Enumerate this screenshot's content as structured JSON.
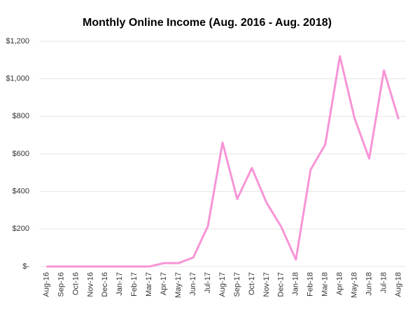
{
  "chart_data": {
    "type": "line",
    "title": "Monthly Online Income (Aug. 2016 - Aug. 2018)",
    "categories": [
      "Aug-16",
      "Sep-16",
      "Oct-16",
      "Nov-16",
      "Dec-16",
      "Jan-17",
      "Feb-17",
      "Mar-17",
      "Apr-17",
      "May-17",
      "Jun-17",
      "Jul-17",
      "Aug-17",
      "Sep-17",
      "Oct-17",
      "Nov-17",
      "Dec-17",
      "Jan-18",
      "Feb-18",
      "Mar-18",
      "Apr-18",
      "May-18",
      "Jun-18",
      "Jul-18",
      "Aug-18"
    ],
    "values": [
      0,
      0,
      0,
      0,
      0,
      0,
      0,
      0,
      18,
      18,
      48,
      215,
      660,
      360,
      525,
      340,
      212,
      37,
      515,
      650,
      1120,
      790,
      575,
      1045,
      785
    ],
    "color": "#f794d6",
    "ylim": [
      0,
      1200
    ],
    "yticks": [
      {
        "value": 0,
        "label": "$-"
      },
      {
        "value": 200,
        "label": "$200"
      },
      {
        "value": 400,
        "label": "$400"
      },
      {
        "value": 600,
        "label": "$600"
      },
      {
        "value": 800,
        "label": "$800"
      },
      {
        "value": 1000,
        "label": "$1,000"
      },
      {
        "value": 1200,
        "label": "$1,200"
      }
    ],
    "grid": true
  }
}
